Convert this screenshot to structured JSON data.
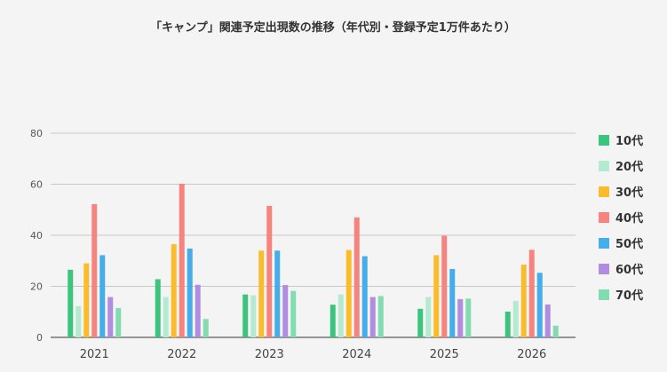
{
  "chart_data": {
    "type": "bar",
    "title": "「キャンプ」関連予定出現数の推移（年代別・登録予定1万件あたり）",
    "xlabel": "",
    "ylabel": "",
    "categories": [
      "2021",
      "2022",
      "2023",
      "2024",
      "2025",
      "2026"
    ],
    "ylim": [
      0,
      80
    ],
    "yticks": [
      0,
      20,
      40,
      60,
      80
    ],
    "grid": true,
    "legend_position": "right",
    "series": [
      {
        "name": "10代",
        "color": "#3cc47c",
        "values": [
          26.5,
          22.8,
          16.8,
          12.8,
          11.2,
          10.1
        ]
      },
      {
        "name": "20代",
        "color": "#b4ead0",
        "values": [
          12.2,
          15.8,
          16.5,
          16.8,
          15.8,
          14.3
        ]
      },
      {
        "name": "30代",
        "color": "#fbbc2c",
        "values": [
          29.0,
          36.5,
          34.0,
          34.2,
          32.2,
          28.5
        ]
      },
      {
        "name": "40代",
        "color": "#f6837e",
        "values": [
          52.2,
          60.2,
          51.5,
          47.0,
          39.8,
          34.3
        ]
      },
      {
        "name": "50代",
        "color": "#45aeea",
        "values": [
          32.2,
          34.8,
          34.0,
          31.8,
          26.8,
          25.3
        ]
      },
      {
        "name": "60代",
        "color": "#b08de0",
        "values": [
          15.8,
          20.6,
          20.5,
          15.8,
          15.0,
          12.9
        ]
      },
      {
        "name": "70代",
        "color": "#82dcb0",
        "values": [
          11.5,
          7.2,
          18.2,
          16.2,
          15.2,
          4.6
        ]
      }
    ]
  }
}
